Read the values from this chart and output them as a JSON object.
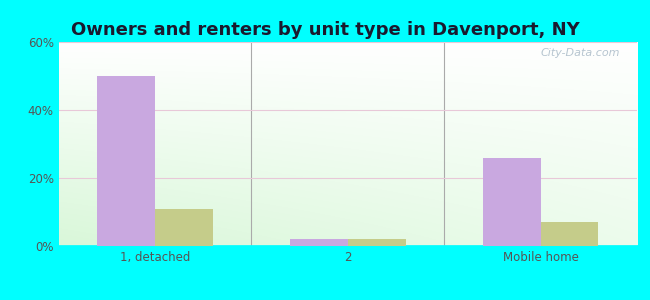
{
  "title": "Owners and renters by unit type in Davenport, NY",
  "categories": [
    "1, detached",
    "2",
    "Mobile home"
  ],
  "owner_values": [
    50,
    2,
    26
  ],
  "renter_values": [
    11,
    2,
    7
  ],
  "owner_color": "#c9a8e0",
  "renter_color": "#c5cc8a",
  "ylim": [
    0,
    60
  ],
  "yticks": [
    0,
    20,
    40,
    60
  ],
  "ytick_labels": [
    "0%",
    "20%",
    "40%",
    "60%"
  ],
  "outer_bg": "#00ffff",
  "watermark": "City-Data.com",
  "bar_width": 0.3,
  "title_fontsize": 13,
  "grid_color": "#e8c8d8",
  "tick_color": "#555555",
  "separator_color": "#aaaaaa"
}
